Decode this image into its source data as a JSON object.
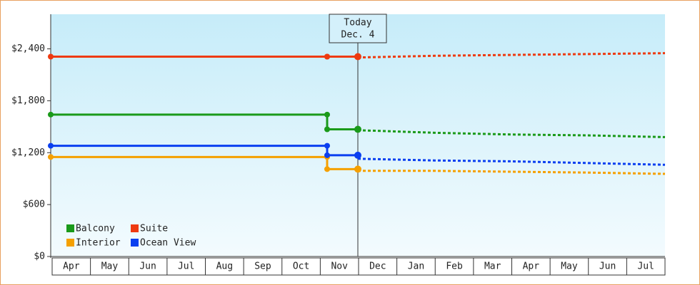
{
  "chart_data": {
    "type": "step",
    "categories": [
      "Apr",
      "May",
      "Jun",
      "Jul",
      "Aug",
      "Sep",
      "Oct",
      "Nov",
      "Dec",
      "Jan",
      "Feb",
      "Mar",
      "Apr",
      "May",
      "Jun",
      "Jul"
    ],
    "xlim": [
      0,
      16
    ],
    "ylim": [
      0,
      2800
    ],
    "yticks": [
      {
        "value": 0,
        "label": "$0"
      },
      {
        "value": 600,
        "label": "$600"
      },
      {
        "value": 1200,
        "label": "$1,200"
      },
      {
        "value": 1800,
        "label": "$1,800"
      },
      {
        "value": 2400,
        "label": "$2,400"
      }
    ],
    "annotation": {
      "lines": [
        "Today",
        "Dec. 4"
      ],
      "x": 8
    },
    "series": [
      {
        "name": "Balcony",
        "color": "#1a9a1a",
        "x": [
          0,
          7.2,
          8
        ],
        "values": [
          1640,
          1470,
          1470
        ],
        "forecast_x": [
          8,
          10,
          12,
          14,
          16
        ],
        "forecast_values": [
          1460,
          1430,
          1410,
          1400,
          1380
        ]
      },
      {
        "name": "Suite",
        "color": "#ee3a10",
        "x": [
          0,
          7.2,
          8
        ],
        "values": [
          2310,
          2310,
          2310
        ],
        "forecast_x": [
          8,
          10,
          12,
          14,
          16
        ],
        "forecast_values": [
          2300,
          2320,
          2330,
          2340,
          2350
        ]
      },
      {
        "name": "Interior",
        "color": "#f5a000",
        "x": [
          0,
          7.2,
          8
        ],
        "values": [
          1150,
          1010,
          1010
        ],
        "forecast_x": [
          8,
          10,
          12,
          14,
          16
        ],
        "forecast_values": [
          990,
          990,
          980,
          970,
          955
        ]
      },
      {
        "name": "Ocean View",
        "color": "#0a3ff0",
        "x": [
          0,
          7.2,
          8
        ],
        "values": [
          1280,
          1170,
          1170
        ],
        "forecast_x": [
          8,
          10,
          12,
          14,
          16
        ],
        "forecast_values": [
          1130,
          1110,
          1100,
          1080,
          1060
        ]
      }
    ]
  }
}
